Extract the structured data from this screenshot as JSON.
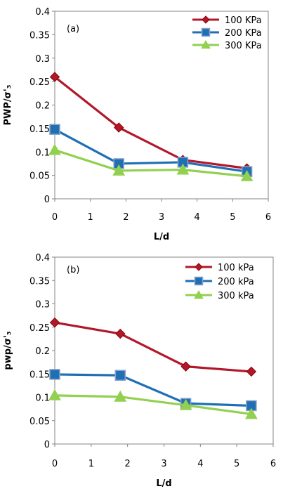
{
  "chart_data": [
    {
      "type": "line",
      "panel_label": "(a)",
      "xlabel": "L/d",
      "ylabel": "PWP/σ'₃",
      "xlim": [
        0,
        6
      ],
      "ylim": [
        0,
        0.4
      ],
      "xticks": [
        "0",
        "1",
        "2",
        "3",
        "4",
        "5",
        "6"
      ],
      "yticks": [
        "0",
        "0.05",
        "0.1",
        "0.15",
        "0.2",
        "0.25",
        "0.3",
        "0.35",
        "0.4"
      ],
      "grid": false,
      "legend_position": "top-right",
      "series": [
        {
          "name": "100 KPa",
          "color": "#b2182b",
          "marker": "diamond",
          "x": [
            0,
            1.8,
            3.6,
            5.4
          ],
          "y": [
            0.26,
            0.152,
            0.083,
            0.065
          ]
        },
        {
          "name": "200 KPa",
          "color": "#1f6fb5",
          "marker": "square",
          "x": [
            0,
            1.8,
            3.6,
            5.4
          ],
          "y": [
            0.148,
            0.075,
            0.078,
            0.058
          ]
        },
        {
          "name": "300 KPa",
          "color": "#92d050",
          "marker": "triangle",
          "x": [
            0,
            1.8,
            3.6,
            5.4
          ],
          "y": [
            0.104,
            0.06,
            0.062,
            0.048
          ]
        }
      ]
    },
    {
      "type": "line",
      "panel_label": "(b)",
      "xlabel": "L/d",
      "ylabel": "pwp/σ'₃",
      "xlim": [
        0,
        6
      ],
      "ylim": [
        0,
        0.4
      ],
      "xticks": [
        "0",
        "1",
        "2",
        "3",
        "4",
        "5",
        "6"
      ],
      "yticks": [
        "0",
        "0.05",
        "0.1",
        "0.15",
        "0.2",
        "0.25",
        "0.3",
        "0.35",
        "0.4"
      ],
      "grid": false,
      "legend_position": "top-right",
      "series": [
        {
          "name": "100 kPa",
          "color": "#b2182b",
          "marker": "diamond",
          "x": [
            0,
            1.8,
            3.6,
            5.4
          ],
          "y": [
            0.26,
            0.236,
            0.166,
            0.155
          ]
        },
        {
          "name": "200 kPa",
          "color": "#1f6fb5",
          "marker": "square",
          "x": [
            0,
            1.8,
            3.6,
            5.4
          ],
          "y": [
            0.149,
            0.147,
            0.087,
            0.082
          ]
        },
        {
          "name": "300 kPa",
          "color": "#92d050",
          "marker": "triangle",
          "x": [
            0,
            1.8,
            3.6,
            5.4
          ],
          "y": [
            0.104,
            0.101,
            0.083,
            0.064
          ]
        }
      ]
    }
  ]
}
